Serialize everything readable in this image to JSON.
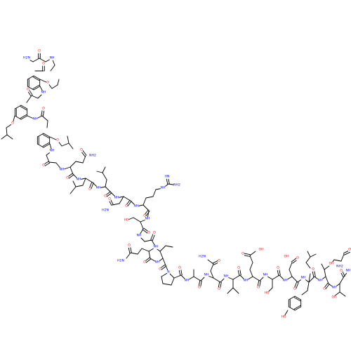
{
  "colors": {
    "bond": "#000000",
    "O": "#ff0000",
    "N": "#0000ff",
    "C": "#000000",
    "bg": "#ffffff"
  },
  "labels": {
    "o": "O",
    "nh": "NH",
    "hn": "HN",
    "n": "N",
    "h2n": "H2N",
    "nh2": "NH2",
    "oh": "OH",
    "ho": "HO"
  }
}
